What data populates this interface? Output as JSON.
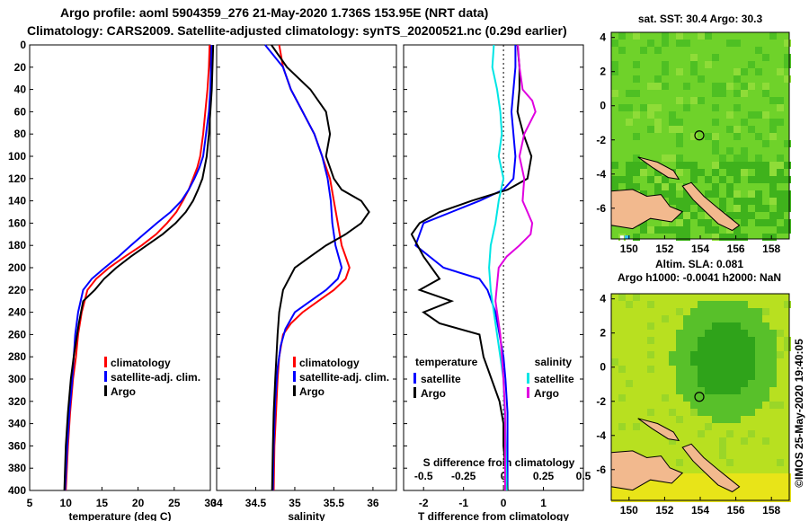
{
  "header": {
    "line1": "Argo profile: aoml 5904359_276 21-May-2020 1.736S 153.95E (NRT data)",
    "line2": "Climatology: CARS2009. Satellite-adjusted climatology: synTS_20200521.nc (0.29d earlier)"
  },
  "colors": {
    "climatology": "#ff0000",
    "satellite": "#0000ff",
    "argo": "#000000",
    "t_sat": "#0000ff",
    "s_sat": "#00e5e5",
    "s_argo": "#e000e0",
    "land": "#f2b98e",
    "sst_bg": "#6fd22a",
    "sla_bg": "#b8e020"
  },
  "chart_data": [
    {
      "type": "line",
      "name": "temperature-panel",
      "xlabel": "temperature (deg C)",
      "ylabel": "",
      "xlim": [
        5,
        30
      ],
      "ylim": [
        400,
        0
      ],
      "xticks": [
        5,
        10,
        15,
        20,
        25,
        30
      ],
      "yticks": [
        0,
        20,
        40,
        60,
        80,
        100,
        120,
        140,
        160,
        180,
        200,
        220,
        240,
        260,
        280,
        300,
        320,
        340,
        360,
        380,
        400
      ],
      "series": [
        {
          "name": "climatology",
          "color": "#ff0000",
          "x": [
            29.9,
            29.8,
            29.6,
            29.3,
            29.0,
            28.6,
            28.2,
            27.6,
            27.0,
            26.2,
            25.3,
            24.0,
            22.5,
            20.5,
            18.2,
            16.0,
            14.2,
            13.0,
            12.2,
            11.7,
            11.4,
            11.0,
            10.6,
            10.3,
            10.0
          ],
          "y": [
            0,
            20,
            40,
            60,
            80,
            100,
            110,
            120,
            130,
            140,
            150,
            160,
            170,
            180,
            190,
            200,
            210,
            220,
            240,
            260,
            280,
            300,
            330,
            360,
            400
          ]
        },
        {
          "name": "satellite-adj. clim.",
          "color": "#0000ff",
          "x": [
            30.2,
            30.1,
            30.0,
            29.8,
            29.4,
            29.0,
            28.5,
            27.8,
            27.0,
            26.0,
            24.5,
            22.6,
            20.8,
            19.0,
            17.3,
            15.4,
            13.6,
            12.4,
            11.7,
            11.3,
            10.9,
            10.5,
            10.2,
            9.9
          ],
          "y": [
            0,
            20,
            40,
            60,
            80,
            100,
            110,
            120,
            130,
            140,
            150,
            160,
            170,
            180,
            190,
            200,
            210,
            220,
            240,
            260,
            300,
            330,
            360,
            400
          ]
        },
        {
          "name": "Argo",
          "color": "#000000",
          "x": [
            30.4,
            30.3,
            30.2,
            30.0,
            29.8,
            29.5,
            29.2,
            28.9,
            28.3,
            27.6,
            26.6,
            25.2,
            23.4,
            21.2,
            19.0,
            17.0,
            15.3,
            14.0,
            12.4,
            11.8,
            11.1,
            10.7,
            10.3,
            10.0,
            9.8
          ],
          "y": [
            0,
            20,
            40,
            60,
            80,
            100,
            110,
            120,
            130,
            140,
            150,
            160,
            170,
            180,
            190,
            200,
            210,
            220,
            230,
            250,
            280,
            300,
            330,
            360,
            400
          ]
        }
      ],
      "legend": {
        "position": "lower-right",
        "entries": [
          "climatology",
          "satellite-adj. clim.",
          "Argo"
        ]
      }
    },
    {
      "type": "line",
      "name": "salinity-panel",
      "xlabel": "salinity",
      "ylabel": "",
      "xlim": [
        34,
        36.3
      ],
      "ylim": [
        400,
        0
      ],
      "xticks": [
        34,
        34.5,
        35,
        35.5,
        36
      ],
      "tick_labels": [
        "34",
        "34.5",
        "35",
        "35.5",
        "36"
      ],
      "series": [
        {
          "name": "climatology",
          "color": "#ff0000",
          "x": [
            34.8,
            34.85,
            34.95,
            35.1,
            35.25,
            35.35,
            35.45,
            35.5,
            35.55,
            35.6,
            35.65,
            35.7,
            35.65,
            35.5,
            35.3,
            35.1,
            34.95,
            34.85,
            34.8,
            34.78,
            34.76,
            34.74,
            34.73
          ],
          "y": [
            0,
            20,
            40,
            60,
            80,
            100,
            120,
            140,
            160,
            180,
            190,
            200,
            210,
            220,
            230,
            240,
            250,
            260,
            280,
            300,
            330,
            360,
            400
          ]
        },
        {
          "name": "satellite-adj. clim.",
          "color": "#0000ff",
          "x": [
            34.62,
            34.85,
            34.95,
            35.1,
            35.25,
            35.35,
            35.42,
            35.46,
            35.48,
            35.52,
            35.6,
            35.55,
            35.4,
            35.2,
            35.0,
            34.88,
            34.82,
            34.78,
            34.75,
            34.73,
            34.72
          ],
          "y": [
            0,
            20,
            40,
            60,
            80,
            100,
            120,
            140,
            160,
            180,
            200,
            210,
            220,
            230,
            240,
            255,
            270,
            290,
            320,
            360,
            400
          ]
        },
        {
          "name": "Argo",
          "color": "#000000",
          "x": [
            34.7,
            34.9,
            35.2,
            35.4,
            35.45,
            35.4,
            35.45,
            35.5,
            35.6,
            35.85,
            35.95,
            35.85,
            35.65,
            35.4,
            35.2,
            35.0,
            34.85,
            34.8,
            34.78,
            34.75,
            34.73,
            34.72,
            34.71
          ],
          "y": [
            0,
            20,
            40,
            60,
            80,
            100,
            110,
            120,
            130,
            140,
            150,
            160,
            170,
            180,
            190,
            200,
            220,
            240,
            260,
            300,
            330,
            360,
            400
          ]
        }
      ],
      "legend": {
        "position": "lower-right",
        "entries": [
          "climatology",
          "satellite-adj. clim.",
          "Argo"
        ]
      }
    },
    {
      "type": "line",
      "name": "difference-panel",
      "xlabel": "T difference from climatology",
      "x2label": "S difference from climatology",
      "xlim": [
        -2.5,
        2
      ],
      "x2lim": [
        -0.625,
        0.5
      ],
      "ylim": [
        400,
        0
      ],
      "xticks": [
        -2,
        -1,
        0,
        1
      ],
      "x2ticks": [
        -0.5,
        -0.25,
        0,
        0.25,
        0.5
      ],
      "x2tick_labels": [
        "-0.5",
        "-0.25",
        "0",
        "0.25",
        "0.5"
      ],
      "series": [
        {
          "name": "temperature satellite",
          "axis": "T",
          "color": "#0000ff",
          "x": [
            0.3,
            0.3,
            0.25,
            0.2,
            0.25,
            0.3,
            0.25,
            0.0,
            -0.6,
            -1.3,
            -2.0,
            -2.2,
            -1.5,
            -0.6,
            -0.4,
            -0.3,
            -0.2,
            -0.1,
            0.0,
            0.05,
            0.1,
            0.1,
            0.1
          ],
          "y": [
            0,
            20,
            40,
            60,
            80,
            100,
            120,
            130,
            140,
            150,
            160,
            180,
            200,
            210,
            220,
            230,
            240,
            260,
            280,
            300,
            330,
            360,
            400
          ]
        },
        {
          "name": "temperature Argo",
          "axis": "T",
          "color": "#000000",
          "x": [
            0.35,
            0.4,
            0.4,
            0.35,
            0.5,
            0.7,
            0.6,
            0.1,
            -0.8,
            -1.6,
            -2.1,
            -2.3,
            -2.0,
            -1.6,
            -2.1,
            -1.3,
            -2.0,
            -1.6,
            -0.6,
            -0.5,
            -0.3,
            -0.1,
            0.0,
            0.0,
            0.1
          ],
          "y": [
            0,
            20,
            40,
            60,
            80,
            100,
            120,
            130,
            140,
            150,
            160,
            170,
            190,
            210,
            220,
            230,
            240,
            250,
            260,
            280,
            300,
            320,
            340,
            360,
            400
          ]
        },
        {
          "name": "salinity satellite",
          "axis": "S",
          "color": "#00e5e5",
          "x": [
            -0.06,
            -0.07,
            -0.04,
            -0.02,
            -0.01,
            -0.03,
            0.0,
            -0.03,
            -0.05,
            -0.08,
            -0.09,
            -0.08,
            -0.05,
            -0.02,
            0.0,
            0.01,
            0.02
          ],
          "y": [
            0,
            20,
            40,
            60,
            80,
            100,
            120,
            140,
            160,
            180,
            200,
            220,
            250,
            280,
            300,
            340,
            400
          ]
        },
        {
          "name": "salinity Argo",
          "axis": "S",
          "color": "#e000e0",
          "x": [
            0.09,
            0.1,
            0.12,
            0.18,
            0.2,
            0.13,
            0.1,
            0.13,
            0.12,
            0.15,
            0.18,
            0.17,
            0.1,
            0.02,
            -0.03,
            -0.05,
            -0.02,
            0.0,
            0.01,
            0.01,
            0.01
          ],
          "y": [
            0,
            20,
            40,
            50,
            60,
            80,
            100,
            120,
            140,
            150,
            160,
            170,
            180,
            190,
            200,
            230,
            260,
            300,
            330,
            360,
            400
          ]
        }
      ],
      "legend_titles": {
        "temperature": "temperature",
        "salinity": "salinity"
      },
      "legend": {
        "temperature": [
          "satellite",
          "Argo"
        ],
        "salinity": [
          "satellite",
          "Argo"
        ]
      }
    },
    {
      "type": "heatmap",
      "name": "sst-map",
      "title": "sat. SST: 30.4 Argo: 30.3",
      "xlim": [
        149,
        159
      ],
      "ylim": [
        -7.8,
        4.3
      ],
      "xticks": [
        150,
        152,
        154,
        156,
        158
      ],
      "yticks": [
        4,
        2,
        0,
        -2,
        -4,
        -6
      ],
      "marker": {
        "lon": 153.95,
        "lat": -1.736
      }
    },
    {
      "type": "heatmap",
      "name": "sla-map",
      "title_line1": "Altim. SLA: 0.081",
      "title_line2": "Argo h1000: -0.0041 h2000: NaN",
      "xlim": [
        149,
        159
      ],
      "ylim": [
        -7.8,
        4.3
      ],
      "xticks": [
        150,
        152,
        154,
        156,
        158
      ],
      "yticks": [
        4,
        2,
        0,
        -2,
        -4,
        -6
      ],
      "marker": {
        "lon": 153.95,
        "lat": -1.736
      }
    }
  ],
  "footer": {
    "credit": "©IMOS 25-May-2020 19:40:05"
  }
}
